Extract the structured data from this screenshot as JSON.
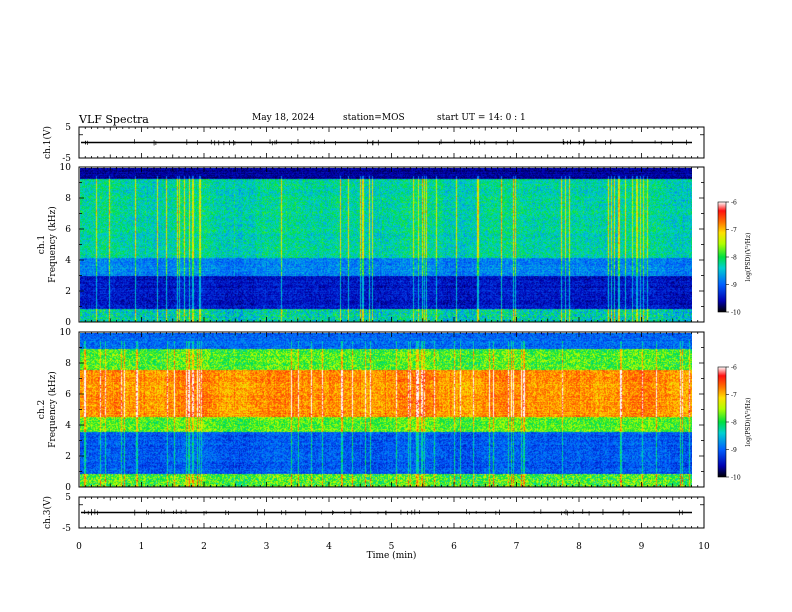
{
  "header": {
    "title": "VLF Spectra",
    "date": "May 18, 2024",
    "station": "station=MOS",
    "start_ut": "start UT =  14: 0  : 1"
  },
  "chart_data": [
    {
      "type": "line",
      "ylabel": "ch.1(V)",
      "ylim": [
        -5,
        5
      ],
      "yticks": [
        "5",
        "-5"
      ],
      "xlim": [
        0,
        10
      ],
      "series": [
        {
          "level": 0
        }
      ]
    },
    {
      "type": "heatmap",
      "ylabel_top": "ch.1",
      "ylabel": "Frequency (kHz)",
      "ylim": [
        0,
        10
      ],
      "yticks": [
        "0",
        "2",
        "4",
        "6",
        "8",
        "10"
      ],
      "xlim": [
        0,
        10
      ],
      "colorbar": {
        "label": "log(PSD)(V²/Hz)",
        "range": [
          -10,
          -6
        ],
        "ticks": [
          "-6",
          "-7",
          "-8",
          "-9",
          "-10"
        ]
      }
    },
    {
      "type": "heatmap",
      "ylabel_top": "ch.2",
      "ylabel": "Frequency (kHz)",
      "ylim": [
        0,
        10
      ],
      "yticks": [
        "0",
        "2",
        "4",
        "6",
        "8",
        "10"
      ],
      "xlim": [
        0,
        10
      ],
      "colorbar": {
        "label": "log(PSD)(V²/Hz)",
        "range": [
          -10,
          -6
        ],
        "ticks": [
          "-6",
          "-7",
          "-8",
          "-9",
          "-10"
        ]
      }
    },
    {
      "type": "line",
      "ylabel": "ch.3(V)",
      "ylim": [
        -5,
        5
      ],
      "yticks": [
        "5",
        "-5"
      ],
      "xlim": [
        0,
        10
      ],
      "xlabel": "Time (min)",
      "xticks": [
        "0",
        "1",
        "2",
        "3",
        "4",
        "5",
        "6",
        "7",
        "8",
        "9",
        "10"
      ],
      "series": [
        {
          "level": 0
        }
      ]
    }
  ]
}
